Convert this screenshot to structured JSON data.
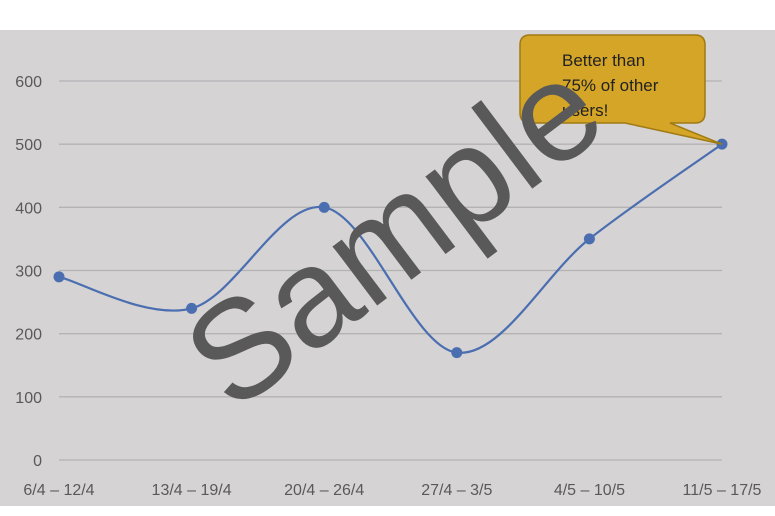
{
  "chart_data": {
    "type": "line",
    "smooth": true,
    "categories": [
      "6/4 – 12/4",
      "13/4 – 19/4",
      "20/4 – 26/4",
      "27/4 – 3/5",
      "4/5 – 10/5",
      "11/5 – 17/5"
    ],
    "series": [
      {
        "values": [
          290,
          240,
          400,
          170,
          350,
          500
        ],
        "color": "#4a6eb0"
      }
    ],
    "yticks": [
      0,
      100,
      200,
      300,
      400,
      500,
      600
    ],
    "ylim": [
      0,
      600
    ],
    "grid": true,
    "title": "",
    "xlabel": "",
    "ylabel": "",
    "annotation": {
      "lines": [
        "Better than",
        "75% of other",
        "users!"
      ],
      "points_to_category": "11/5 – 17/5",
      "fill": "#d4a526",
      "stroke": "#a07a12"
    },
    "watermark": "Sample"
  },
  "colors": {
    "plot_background": "#d5d3d4",
    "gridline": "#b4b2b3",
    "axis_text": "#595959"
  }
}
